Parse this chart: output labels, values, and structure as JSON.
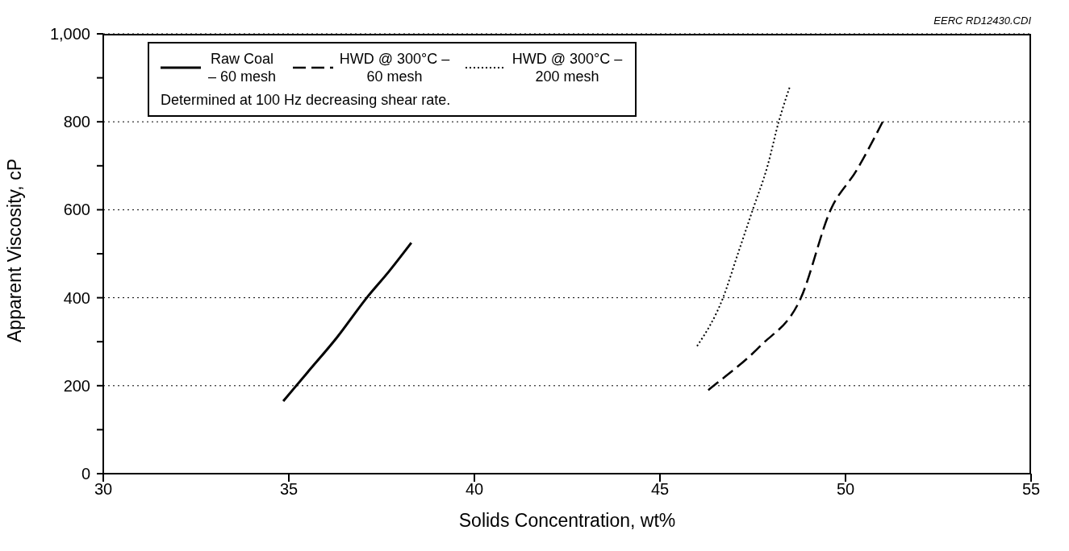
{
  "chart_data": {
    "type": "line",
    "xlabel": "Solids Concentration, wt%",
    "ylabel": "Apparent Viscosity, cP",
    "xlim": [
      30,
      55
    ],
    "xticks": [
      30,
      35,
      40,
      45,
      50,
      55
    ],
    "ylim": [
      0,
      1000
    ],
    "yticks": [
      0,
      {
        "value": 100,
        "label": null
      },
      200,
      {
        "value": 300,
        "label": null
      },
      400,
      {
        "value": 500,
        "label": null
      },
      600,
      {
        "value": 700,
        "label": null
      },
      800,
      {
        "value": 900,
        "label": null
      },
      {
        "value": 1000,
        "label": "1,000"
      }
    ],
    "grid": "y",
    "legend": "top left",
    "marker": "none",
    "annotations": [
      "Determined at 100 Hz decreasing shear rate.",
      "EERC RD12430.CDI"
    ],
    "series": [
      {
        "name": "Raw Coal – 60 mesh",
        "color": "#000000",
        "line_style": "solid",
        "x": [
          34.85,
          35.5,
          36.3,
          37.1,
          37.7,
          38.3
        ],
        "values": [
          165,
          230,
          310,
          400,
          460,
          525
        ]
      },
      {
        "name": "HWD @ 300°C – 60 mesh",
        "color": "#000000",
        "line_style": "dashed",
        "x": [
          46.3,
          46.6,
          47.7,
          48.8,
          49.6,
          50.3,
          51.0
        ],
        "values": [
          190,
          210,
          290,
          400,
          600,
          690,
          800
        ]
      },
      {
        "name": "HWD @ 300°C – 200 mesh",
        "color": "#000000",
        "line_style": "dotted",
        "x": [
          46.0,
          46.7,
          47.1,
          47.5,
          47.9,
          48.2,
          48.5
        ],
        "values": [
          290,
          400,
          500,
          600,
          700,
          800,
          880
        ]
      }
    ]
  }
}
